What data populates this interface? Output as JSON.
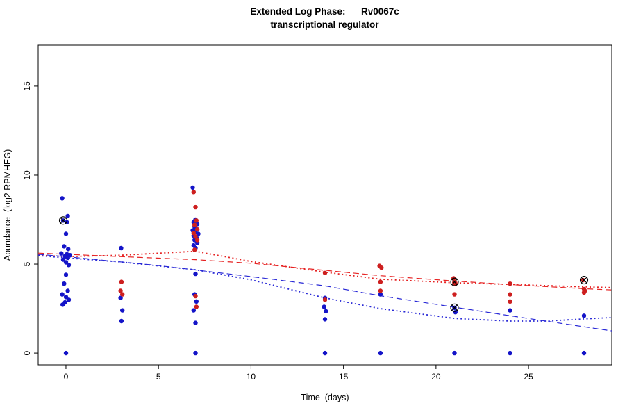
{
  "figure": {
    "background": "#ffffff"
  },
  "chart_data": {
    "type": "scatter",
    "title": "Extended Log Phase:      Rv0067c",
    "subtitle": "transcriptional regulator",
    "xlabel": "Time  (days)",
    "ylabel": "Abundance  (log2 RPMHEG)",
    "xlim": [
      -1.5,
      29.5
    ],
    "ylim": [
      -0.66,
      17.3
    ],
    "xticks": [
      0,
      5,
      10,
      15,
      20,
      25
    ],
    "yticks": [
      0,
      5,
      10,
      15
    ],
    "point_radius": 3.2,
    "series": [
      {
        "name": "blue-condition",
        "color": "#1414c8",
        "points": [
          [
            -0.2,
            8.7
          ],
          [
            0.1,
            7.7
          ],
          [
            -0.15,
            7.45
          ],
          [
            0.05,
            7.35
          ],
          [
            0.0,
            6.7
          ],
          [
            -0.1,
            6.0
          ],
          [
            0.12,
            5.85
          ],
          [
            -0.25,
            5.6
          ],
          [
            0.05,
            5.55
          ],
          [
            0.22,
            5.5
          ],
          [
            -0.05,
            5.45
          ],
          [
            0.1,
            5.35
          ],
          [
            -0.15,
            5.25
          ],
          [
            0.0,
            5.1
          ],
          [
            0.15,
            4.95
          ],
          [
            0.0,
            4.4
          ],
          [
            -0.1,
            3.9
          ],
          [
            0.1,
            3.5
          ],
          [
            -0.2,
            3.3
          ],
          [
            0.0,
            3.15
          ],
          [
            0.15,
            3.0
          ],
          [
            -0.05,
            2.85
          ],
          [
            -0.18,
            2.72
          ],
          [
            0.0,
            0.0
          ],
          [
            2.98,
            5.9
          ],
          [
            2.95,
            3.1
          ],
          [
            3.05,
            2.4
          ],
          [
            3.0,
            1.8
          ],
          [
            6.85,
            9.3
          ],
          [
            7.0,
            7.5
          ],
          [
            6.9,
            7.35
          ],
          [
            7.1,
            7.25
          ],
          [
            6.95,
            7.1
          ],
          [
            7.05,
            7.0
          ],
          [
            6.85,
            6.9
          ],
          [
            7.0,
            6.8
          ],
          [
            7.15,
            6.7
          ],
          [
            6.9,
            6.6
          ],
          [
            7.05,
            6.5
          ],
          [
            6.95,
            6.35
          ],
          [
            7.1,
            6.2
          ],
          [
            6.9,
            6.05
          ],
          [
            7.0,
            5.9
          ],
          [
            7.0,
            4.45
          ],
          [
            6.95,
            3.3
          ],
          [
            7.05,
            2.9
          ],
          [
            6.9,
            2.4
          ],
          [
            7.0,
            1.7
          ],
          [
            7.0,
            0.0
          ],
          [
            14.0,
            3.1
          ],
          [
            13.95,
            2.6
          ],
          [
            14.05,
            2.35
          ],
          [
            14.0,
            1.9
          ],
          [
            14.0,
            0.0
          ],
          [
            17.0,
            3.3
          ],
          [
            17.0,
            0.0
          ],
          [
            21.0,
            2.55
          ],
          [
            21.05,
            2.3
          ],
          [
            21.0,
            0.0
          ],
          [
            24.0,
            2.4
          ],
          [
            24.0,
            0.0
          ],
          [
            28.0,
            2.1
          ],
          [
            28.0,
            0.0
          ]
        ]
      },
      {
        "name": "red-condition",
        "color": "#cd1f1f",
        "points": [
          [
            3.0,
            4.0
          ],
          [
            2.95,
            3.5
          ],
          [
            3.05,
            3.3
          ],
          [
            6.9,
            9.05
          ],
          [
            7.0,
            8.2
          ],
          [
            7.05,
            7.45
          ],
          [
            6.95,
            7.2
          ],
          [
            7.1,
            6.95
          ],
          [
            6.9,
            6.75
          ],
          [
            7.0,
            6.55
          ],
          [
            7.1,
            6.35
          ],
          [
            6.95,
            5.8
          ],
          [
            7.0,
            3.2
          ],
          [
            7.05,
            2.6
          ],
          [
            14.0,
            4.5
          ],
          [
            14.0,
            3.0
          ],
          [
            16.95,
            4.9
          ],
          [
            17.05,
            4.8
          ],
          [
            17.0,
            4.0
          ],
          [
            17.0,
            3.5
          ],
          [
            20.95,
            4.2
          ],
          [
            21.0,
            4.0
          ],
          [
            21.05,
            3.9
          ],
          [
            21.0,
            3.3
          ],
          [
            24.0,
            3.9
          ],
          [
            24.0,
            3.3
          ],
          [
            24.0,
            2.9
          ],
          [
            27.95,
            4.1
          ],
          [
            28.0,
            3.6
          ],
          [
            28.05,
            3.5
          ],
          [
            28.0,
            3.4
          ]
        ]
      }
    ],
    "trend_lines": [
      {
        "name": "red-longdash",
        "color": "#e62222",
        "dash": "8,5",
        "width": 1.2,
        "points": [
          [
            -1.5,
            5.62
          ],
          [
            0,
            5.55
          ],
          [
            3,
            5.42
          ],
          [
            7,
            5.25
          ],
          [
            10,
            5.05
          ],
          [
            14,
            4.65
          ],
          [
            17,
            4.35
          ],
          [
            21,
            4.05
          ],
          [
            24,
            3.85
          ],
          [
            28,
            3.62
          ],
          [
            29.5,
            3.55
          ]
        ]
      },
      {
        "name": "red-dotted",
        "color": "#e62222",
        "dash": "2,3.5",
        "width": 1.8,
        "points": [
          [
            -1.5,
            5.5
          ],
          [
            0,
            5.42
          ],
          [
            3,
            5.5
          ],
          [
            7,
            5.72
          ],
          [
            10,
            5.15
          ],
          [
            14,
            4.55
          ],
          [
            17,
            4.15
          ],
          [
            21,
            3.95
          ],
          [
            24,
            3.86
          ],
          [
            28,
            3.72
          ],
          [
            29.5,
            3.68
          ]
        ]
      },
      {
        "name": "blue-longdash",
        "color": "#2929d6",
        "dash": "8,5",
        "width": 1.2,
        "points": [
          [
            -1.5,
            5.55
          ],
          [
            0,
            5.42
          ],
          [
            5,
            4.92
          ],
          [
            10,
            4.3
          ],
          [
            14,
            3.78
          ],
          [
            17,
            3.22
          ],
          [
            21,
            2.58
          ],
          [
            24,
            2.1
          ],
          [
            28,
            1.48
          ],
          [
            29.5,
            1.25
          ]
        ]
      },
      {
        "name": "blue-dotted",
        "color": "#2929d6",
        "dash": "2,3.5",
        "width": 1.8,
        "points": [
          [
            -1.5,
            5.48
          ],
          [
            0,
            5.35
          ],
          [
            3,
            5.12
          ],
          [
            7,
            4.68
          ],
          [
            10,
            4.12
          ],
          [
            14,
            3.1
          ],
          [
            17,
            2.5
          ],
          [
            21,
            1.95
          ],
          [
            24,
            1.8
          ],
          [
            26,
            1.8
          ],
          [
            28,
            1.92
          ],
          [
            29.5,
            2.0
          ]
        ]
      }
    ],
    "flagged_points": [
      [
        -0.15,
        7.45
      ],
      [
        21.0,
        4.0
      ],
      [
        21.0,
        2.55
      ],
      [
        28.0,
        4.1
      ]
    ],
    "flag_style": {
      "color": "#000000",
      "radius": 5.5
    },
    "layout": {
      "grid": false,
      "legend": "none"
    }
  }
}
